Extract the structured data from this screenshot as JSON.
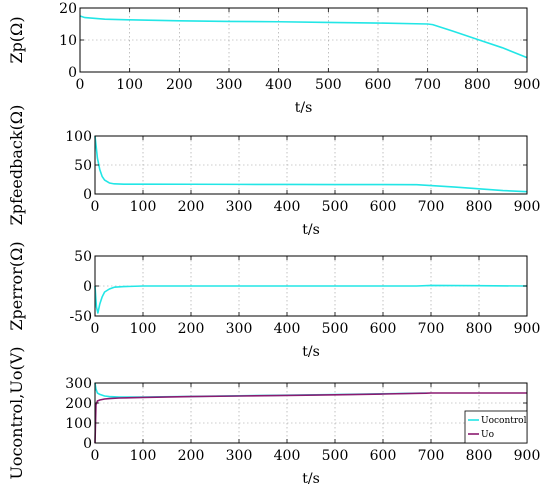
{
  "chart_data": [
    {
      "type": "line",
      "ylabel": "Zp(Ω)",
      "xlabel": "t/s",
      "xlim": [
        0,
        900
      ],
      "ylim": [
        0,
        20
      ],
      "xticks": [
        0,
        100,
        200,
        300,
        400,
        500,
        600,
        700,
        800,
        900
      ],
      "yticks": [
        0,
        10,
        20
      ],
      "grid": true,
      "series": [
        {
          "color": "#22e6e6",
          "x": [
            0,
            10,
            50,
            100,
            200,
            300,
            400,
            500,
            600,
            700,
            710,
            750,
            800,
            850,
            900
          ],
          "y": [
            17.5,
            17.0,
            16.5,
            16.3,
            16.0,
            15.8,
            15.7,
            15.5,
            15.3,
            15.0,
            14.8,
            12.8,
            10.2,
            7.6,
            4.5
          ]
        }
      ]
    },
    {
      "type": "line",
      "ylabel": "Zpfeedback(Ω)",
      "xlabel": "t/s",
      "xlim": [
        0,
        900
      ],
      "ylim": [
        0,
        100
      ],
      "xticks": [
        0,
        100,
        200,
        300,
        400,
        500,
        600,
        700,
        800,
        900
      ],
      "yticks": [
        0,
        50,
        100
      ],
      "grid": true,
      "series": [
        {
          "color": "#22e6e6",
          "x": [
            0,
            2,
            5,
            10,
            15,
            20,
            30,
            40,
            60,
            100,
            200,
            300,
            400,
            500,
            600,
            670,
            700,
            750,
            800,
            850,
            900
          ],
          "y": [
            100,
            85,
            62,
            42,
            30,
            24,
            19,
            17.5,
            17,
            17,
            16.8,
            16.6,
            16.5,
            16.3,
            16.2,
            16,
            14.5,
            12,
            9,
            6,
            4
          ]
        }
      ]
    },
    {
      "type": "line",
      "ylabel": "Zperror(Ω)",
      "xlabel": "t/s",
      "xlim": [
        0,
        900
      ],
      "ylim": [
        -50,
        50
      ],
      "xticks": [
        0,
        100,
        200,
        300,
        400,
        500,
        600,
        700,
        800,
        900
      ],
      "yticks": [
        -50,
        0,
        50
      ],
      "grid": true,
      "series": [
        {
          "color": "#22e6e6",
          "x": [
            0,
            3,
            6,
            10,
            15,
            20,
            30,
            40,
            60,
            100,
            200,
            300,
            400,
            500,
            600,
            670,
            700,
            800,
            900
          ],
          "y": [
            0,
            -35,
            -45,
            -30,
            -18,
            -10,
            -5,
            -2,
            -1,
            0,
            0,
            0,
            0,
            0,
            0,
            0,
            1,
            0.5,
            0
          ]
        }
      ]
    },
    {
      "type": "line",
      "ylabel": "Uocontrol,Uo(V)",
      "xlabel": "t/s",
      "xlim": [
        0,
        900
      ],
      "ylim": [
        0,
        300
      ],
      "xticks": [
        0,
        100,
        200,
        300,
        400,
        500,
        600,
        700,
        800,
        900
      ],
      "yticks": [
        0,
        100,
        200,
        300
      ],
      "grid": true,
      "legend": "bottom-right",
      "series": [
        {
          "name": "Uocontrol",
          "color": "#22e6e6",
          "x": [
            0,
            2,
            5,
            10,
            20,
            30,
            50,
            100,
            200,
            300,
            400,
            500,
            600,
            690
          ],
          "y": [
            300,
            270,
            250,
            243,
            235,
            232,
            230,
            230,
            233,
            236,
            239,
            242,
            246,
            250
          ]
        },
        {
          "name": "Uo",
          "color": "#8b1a70",
          "x": [
            0,
            2,
            5,
            10,
            20,
            30,
            50,
            100,
            200,
            300,
            400,
            500,
            600,
            690,
            700,
            800,
            900
          ],
          "y": [
            0,
            190,
            210,
            215,
            220,
            222,
            225,
            228,
            232,
            235,
            238,
            241,
            245,
            249,
            250,
            250,
            250
          ]
        }
      ]
    }
  ]
}
